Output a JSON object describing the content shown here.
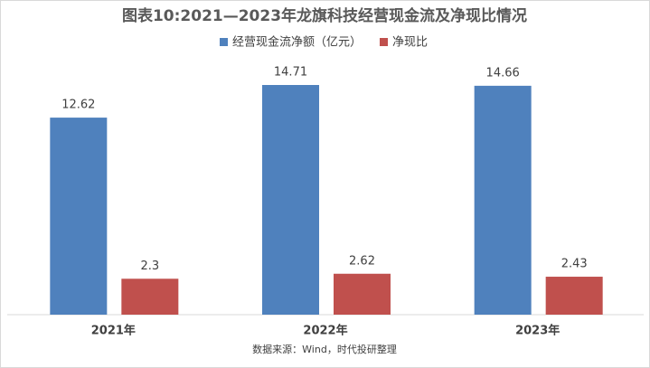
{
  "chart_data": {
    "type": "bar",
    "title": "图表10:2021—2023年龙旗科技经营现金流及净现比情况",
    "source": "数据来源：Wind，时代投研整理",
    "categories": [
      "2021年",
      "2022年",
      "2023年"
    ],
    "series": [
      {
        "name": "经营现金流净额（亿元）",
        "color": "#4f81bd",
        "values": [
          12.62,
          14.71,
          14.66
        ]
      },
      {
        "name": "净现比",
        "color": "#c0504d",
        "values": [
          2.3,
          2.62,
          2.43
        ]
      }
    ]
  }
}
